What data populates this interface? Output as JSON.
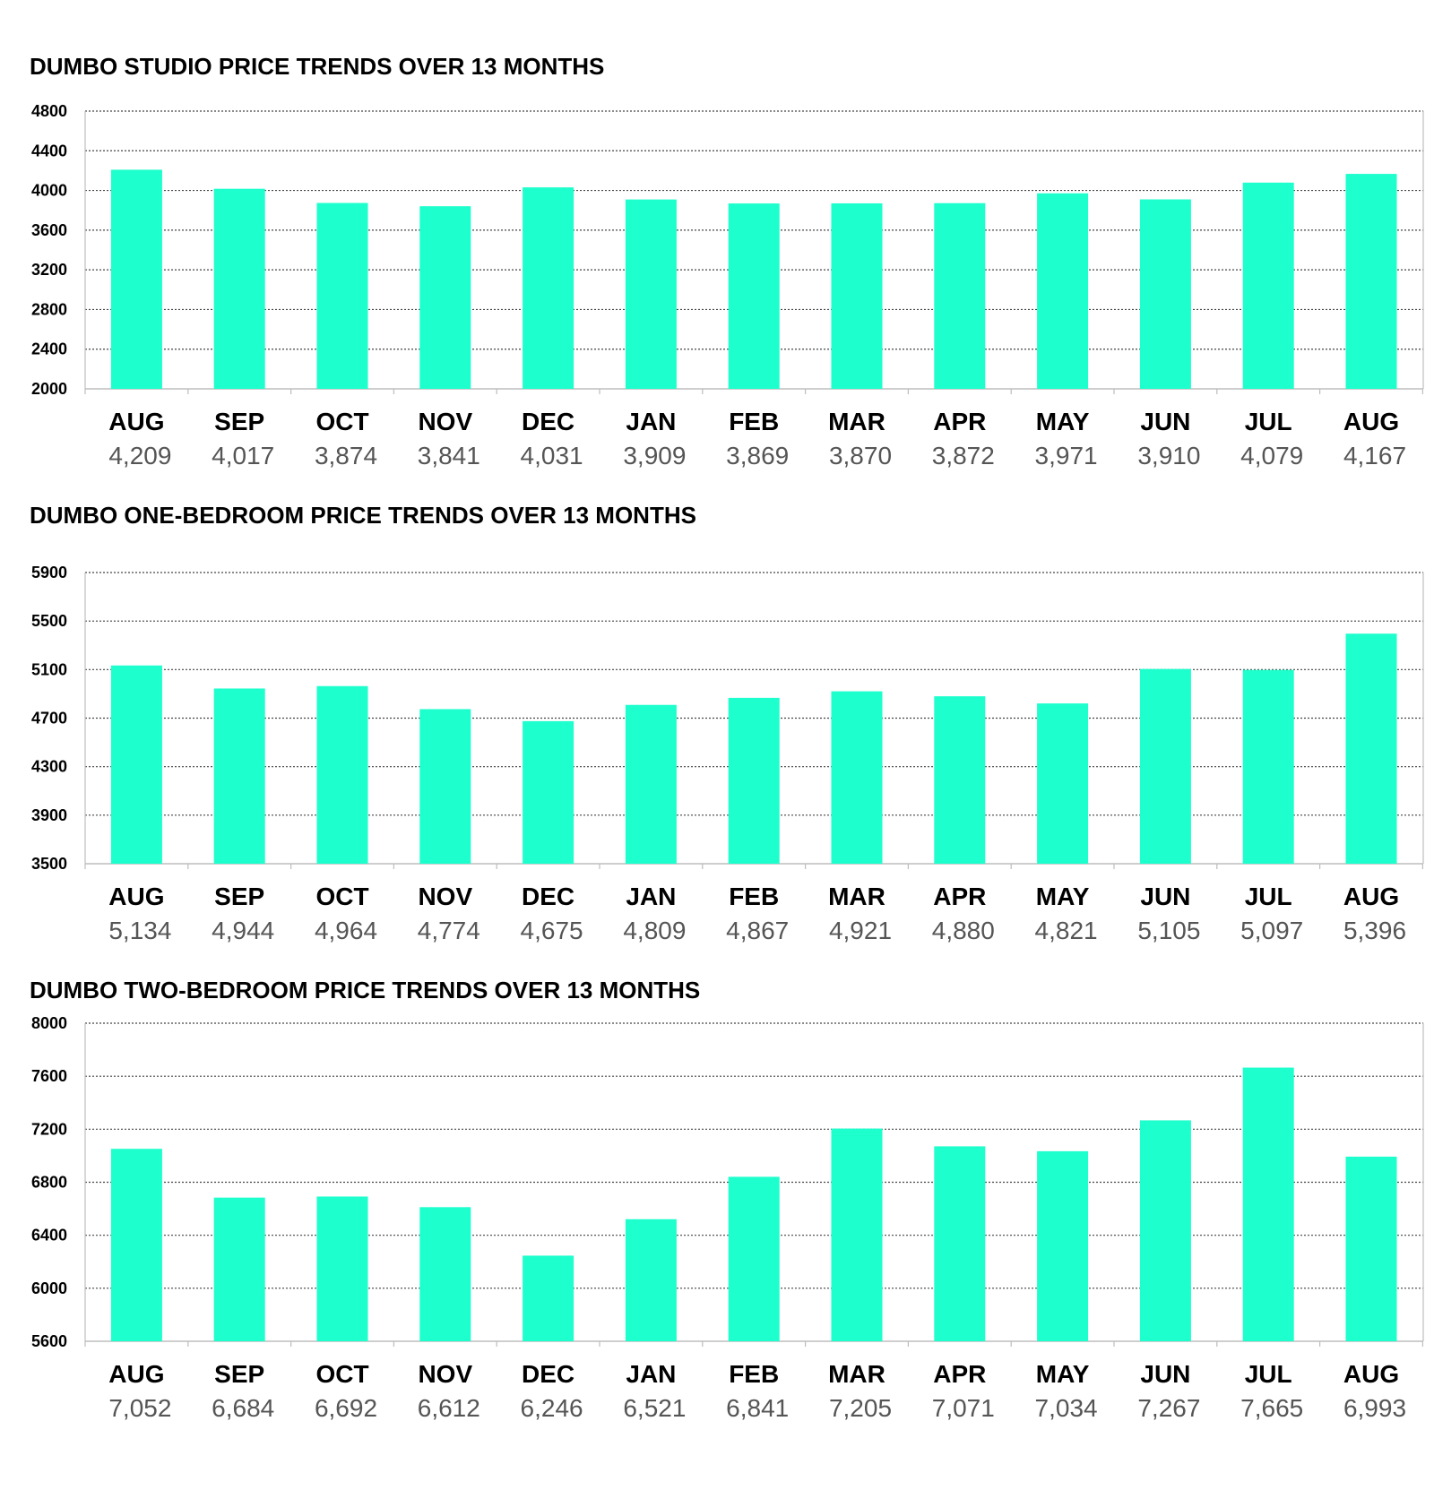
{
  "colors": {
    "bar": "#1dffcc",
    "grid": "#444444",
    "axis": "#bdbdbd"
  },
  "chart_data": [
    {
      "type": "bar",
      "title": "DUMBO STUDIO PRICE TRENDS OVER 13 MONTHS",
      "categories": [
        "AUG",
        "SEP",
        "OCT",
        "NOV",
        "DEC",
        "JAN",
        "FEB",
        "MAR",
        "APR",
        "MAY",
        "JUN",
        "JUL",
        "AUG"
      ],
      "value_labels": [
        "4,209",
        "4,017",
        "3,874",
        "3,841",
        "4,031",
        "3,909",
        "3,869",
        "3,870",
        "3,872",
        "3,971",
        "3,910",
        "4,079",
        "4,167"
      ],
      "values": [
        4209,
        4017,
        3874,
        3841,
        4031,
        3909,
        3869,
        3870,
        3872,
        3971,
        3910,
        4079,
        4167
      ],
      "yticks": [
        "2000",
        "2400",
        "2800",
        "3200",
        "3600",
        "4000",
        "4400",
        "4800"
      ],
      "ylim": [
        2000,
        4800
      ],
      "grid": true,
      "xlabel": "",
      "ylabel": ""
    },
    {
      "type": "bar",
      "title": "DUMBO ONE-BEDROOM PRICE TRENDS OVER 13 MONTHS",
      "categories": [
        "AUG",
        "SEP",
        "OCT",
        "NOV",
        "DEC",
        "JAN",
        "FEB",
        "MAR",
        "APR",
        "MAY",
        "JUN",
        "JUL",
        "AUG"
      ],
      "value_labels": [
        "5,134",
        "4,944",
        "4,964",
        "4,774",
        "4,675",
        "4,809",
        "4,867",
        "4,921",
        "4,880",
        "4,821",
        "5,105",
        "5,097",
        "5,396"
      ],
      "values": [
        5134,
        4944,
        4964,
        4774,
        4675,
        4809,
        4867,
        4921,
        4880,
        4821,
        5105,
        5097,
        5396
      ],
      "yticks": [
        "3500",
        "3900",
        "4300",
        "4700",
        "5100",
        "5500",
        "5900"
      ],
      "ylim": [
        3500,
        5900
      ],
      "grid": true,
      "xlabel": "",
      "ylabel": ""
    },
    {
      "type": "bar",
      "title": "DUMBO TWO-BEDROOM PRICE TRENDS OVER 13 MONTHS",
      "categories": [
        "AUG",
        "SEP",
        "OCT",
        "NOV",
        "DEC",
        "JAN",
        "FEB",
        "MAR",
        "APR",
        "MAY",
        "JUN",
        "JUL",
        "AUG"
      ],
      "value_labels": [
        "7,052",
        "6,684",
        "6,692",
        "6,612",
        "6,246",
        "6,521",
        "6,841",
        "7,205",
        "7,071",
        "7,034",
        "7,267",
        "7,665",
        "6,993"
      ],
      "values": [
        7052,
        6684,
        6692,
        6612,
        6246,
        6521,
        6841,
        7205,
        7071,
        7034,
        7267,
        7665,
        6993
      ],
      "yticks": [
        "5600",
        "6000",
        "6400",
        "6800",
        "7200",
        "7600",
        "8000"
      ],
      "ylim": [
        5600,
        8000
      ],
      "grid": true,
      "xlabel": "",
      "ylabel": ""
    }
  ]
}
